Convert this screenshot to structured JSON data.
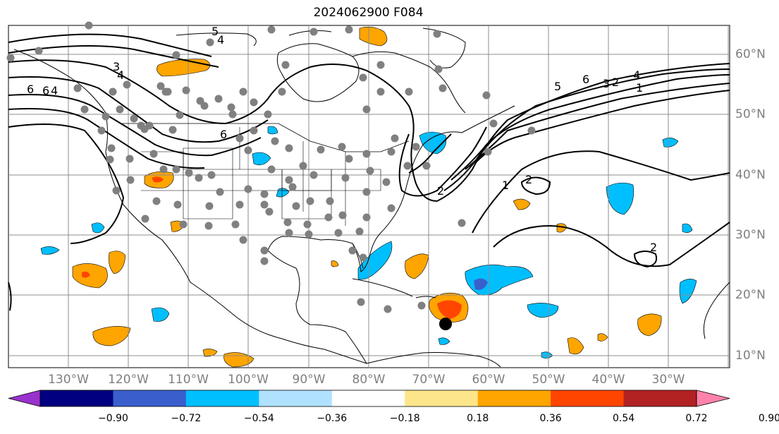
{
  "figure": {
    "title": "2024062900 F084"
  },
  "axes": {
    "lon_labels": [
      "130°W",
      "120°W",
      "110°W",
      "100°W",
      "90°W",
      "80°W",
      "70°W",
      "60°W",
      "50°W",
      "40°W",
      "30°W"
    ],
    "lat_labels": [
      "60°N",
      "50°N",
      "40°N",
      "30°N",
      "20°N",
      "10°N"
    ]
  },
  "contours": {
    "labels": [
      "5",
      "4",
      "3",
      "4",
      "6",
      "6",
      "2",
      "6",
      "5",
      "4",
      "1",
      "2",
      "1",
      "2",
      "2",
      "6",
      "4",
      "3"
    ]
  },
  "colorbar": {
    "tick_labels": [
      "−0.90",
      "−0.72",
      "−0.54",
      "−0.36",
      "−0.18",
      "0.18",
      "0.36",
      "0.54",
      "0.72",
      "0.90"
    ],
    "colors": [
      "#9a32cd",
      "#000080",
      "#3a5fcd",
      "#00bfff",
      "#b0e2ff",
      "#ffffff",
      "#fde68a",
      "#ffa500",
      "#ff4500",
      "#b22222",
      "#ff82ab"
    ]
  },
  "colors": {
    "land_outline": "#000000",
    "grid": "#8c8c8c",
    "station_dot": "#808080",
    "storm_marker": "#000000"
  }
}
